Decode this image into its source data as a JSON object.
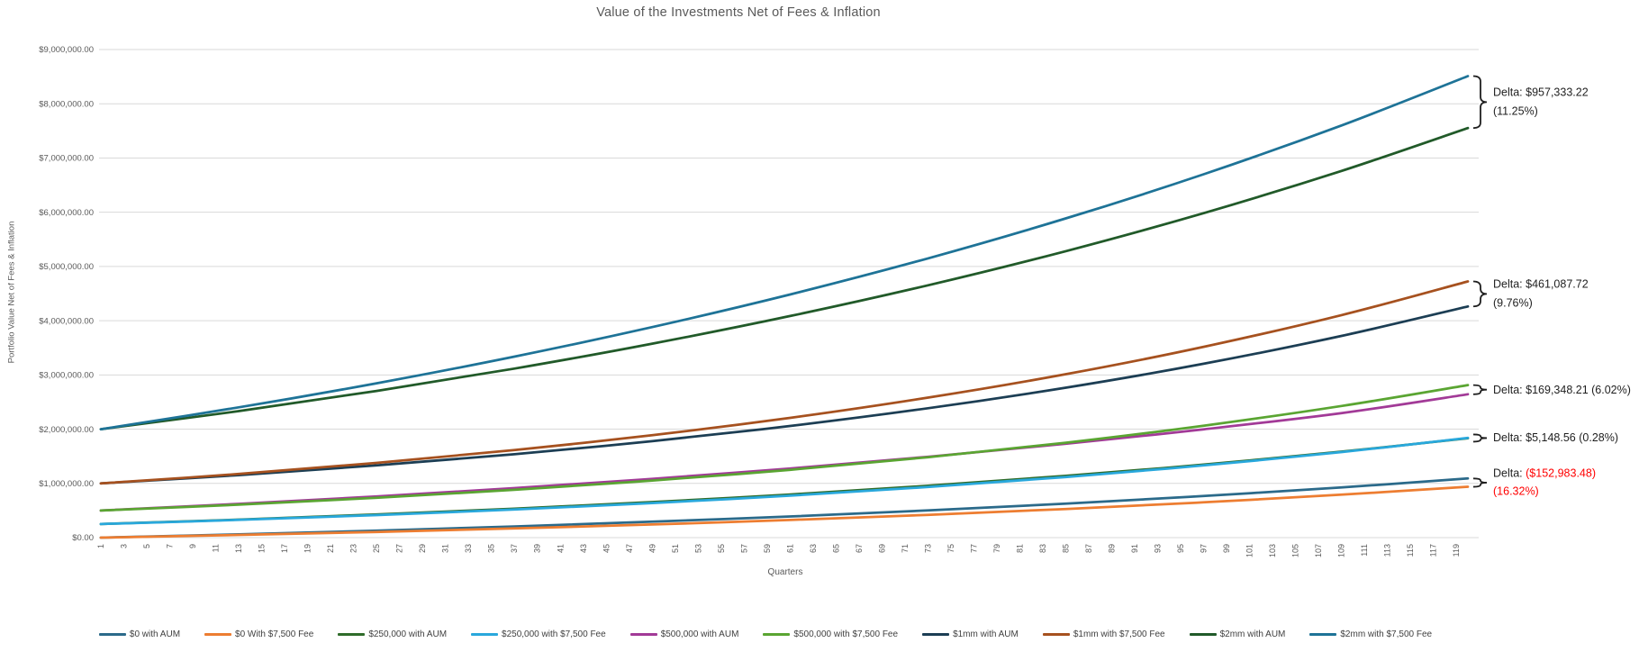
{
  "chart_data": {
    "type": "line",
    "title": "Value of the Investments Net of Fees & Inflation",
    "xlabel": "Quarters",
    "ylabel": "Portfolio Value Net of Fees & Inflation",
    "x_range": [
      1,
      120
    ],
    "ylim": [
      0,
      9000000
    ],
    "y_tick_step": 1000000,
    "grid": "horizontal",
    "legend_position": "bottom",
    "y_tick_labels": [
      "$0.00",
      "$1,000,000.00",
      "$2,000,000.00",
      "$3,000,000.00",
      "$4,000,000.00",
      "$5,000,000.00",
      "$6,000,000.00",
      "$7,000,000.00",
      "$8,000,000.00",
      "$9,000,000.00"
    ],
    "x_tick_labels": [
      "1",
      "3",
      "5",
      "7",
      "9",
      "11",
      "13",
      "15",
      "17",
      "19",
      "21",
      "23",
      "25",
      "27",
      "29",
      "31",
      "33",
      "35",
      "37",
      "39",
      "41",
      "43",
      "45",
      "47",
      "49",
      "51",
      "53",
      "55",
      "57",
      "59",
      "61",
      "63",
      "65",
      "67",
      "69",
      "71",
      "73",
      "75",
      "77",
      "79",
      "81",
      "83",
      "85",
      "87",
      "89",
      "91",
      "93",
      "95",
      "97",
      "99",
      "101",
      "103",
      "105",
      "107",
      "109",
      "111",
      "113",
      "115",
      "117",
      "119"
    ],
    "sample_quarters": [
      1,
      13,
      25,
      37,
      49,
      61,
      73,
      85,
      97,
      109,
      120
    ],
    "series": [
      {
        "name": "$0 with AUM",
        "color": "#2B6A8A",
        "values": [
          0,
          60451,
          128688,
          206178,
          294132,
          390685,
          501422,
          626349,
          767438,
          926519,
          1090380
        ]
      },
      {
        "name": "$0 With $7,500 Fee",
        "color": "#ED7D31",
        "values": [
          0,
          49185,
          105270,
          169209,
          242120,
          325240,
          420026,
          528108,
          651350,
          791869,
          937397
        ]
      },
      {
        "name": "$250,000 with AUM",
        "color": "#2F6C2A",
        "values": [
          250000,
          332189,
          426080,
          533333,
          655878,
          795834,
          955766,
          1138447,
          1347118,
          1585517,
          1833623
        ]
      },
      {
        "name": "$250,000 with $7,500 Fee",
        "color": "#29A8DC",
        "values": [
          250000,
          326659,
          415393,
          518109,
          637013,
          774571,
          933820,
          1118069,
          1331398,
          1578295,
          1838771
        ]
      },
      {
        "name": "$500,000 with AUM",
        "color": "#A23A97",
        "values": [
          500000,
          622128,
          759305,
          912729,
          1084297,
          1275965,
          1490462,
          1729697,
          1997258,
          2296120,
          2643745
        ]
      },
      {
        "name": "$500,000 with $7,500 Fee",
        "color": "#5AA532",
        "values": [
          500000,
          608484,
          734686,
          881522,
          1052320,
          1251038,
          1482156,
          1751013,
          2063790,
          2427578,
          2813093
        ]
      },
      {
        "name": "$1mm with AUM",
        "color": "#1C3E54",
        "values": [
          1000000,
          1153043,
          1331082,
          1538228,
          1779180,
          2059520,
          2385582,
          2764854,
          3206104,
          3719309,
          4263171
        ]
      },
      {
        "name": "$1mm with $7,500 Fee",
        "color": "#A6511F",
        "values": [
          1000000,
          1174670,
          1377866,
          1614289,
          1889286,
          2209237,
          2581377,
          3014270,
          3517858,
          4103549,
          4724259
        ]
      },
      {
        "name": "$2mm with AUM",
        "color": "#215A29",
        "values": [
          2000000,
          2333803,
          2704921,
          3117515,
          3576129,
          4086010,
          4652824,
          5282874,
          5983384,
          6762254,
          7552296
        ]
      },
      {
        "name": "$2mm with $7,500 Fee",
        "color": "#1E7397",
        "values": [
          2000000,
          2401968,
          2846510,
          3338306,
          3882316,
          4484063,
          5149605,
          5885775,
          6700062,
          7600728,
          8509629
        ]
      }
    ],
    "annotations": [
      {
        "prefix": "Delta:",
        "value": "$957,333.22",
        "pct": "(11.25%)",
        "lines": 2,
        "negative": false,
        "value_top": 8509629,
        "value_bottom": 7552296
      },
      {
        "prefix": "Delta:",
        "value": "$461,087.72",
        "pct": "(9.76%)",
        "lines": 2,
        "negative": false,
        "value_top": 4724259,
        "value_bottom": 4263171
      },
      {
        "prefix": "Delta:",
        "value": "$169,348.21",
        "pct": "(6.02%)",
        "lines": 1,
        "negative": false,
        "value_top": 2813093,
        "value_bottom": 2643745
      },
      {
        "prefix": "Delta:",
        "value": "$5,148.56",
        "pct": "(0.28%)",
        "lines": 1,
        "negative": false,
        "value_top": 1838771,
        "value_bottom": 1833623
      },
      {
        "prefix": "Delta:",
        "value": "($152,983.48)",
        "pct": "(16.32%)",
        "lines": 2,
        "negative": true,
        "value_top": 1090380,
        "value_bottom": 937397
      }
    ],
    "colors": {
      "gridline": "#D9D9D9",
      "axis_text": "#595959",
      "annotation_text": "#1f1f1f",
      "annotation_negative": "#FF0000",
      "brace": "#1f1f1f"
    }
  }
}
